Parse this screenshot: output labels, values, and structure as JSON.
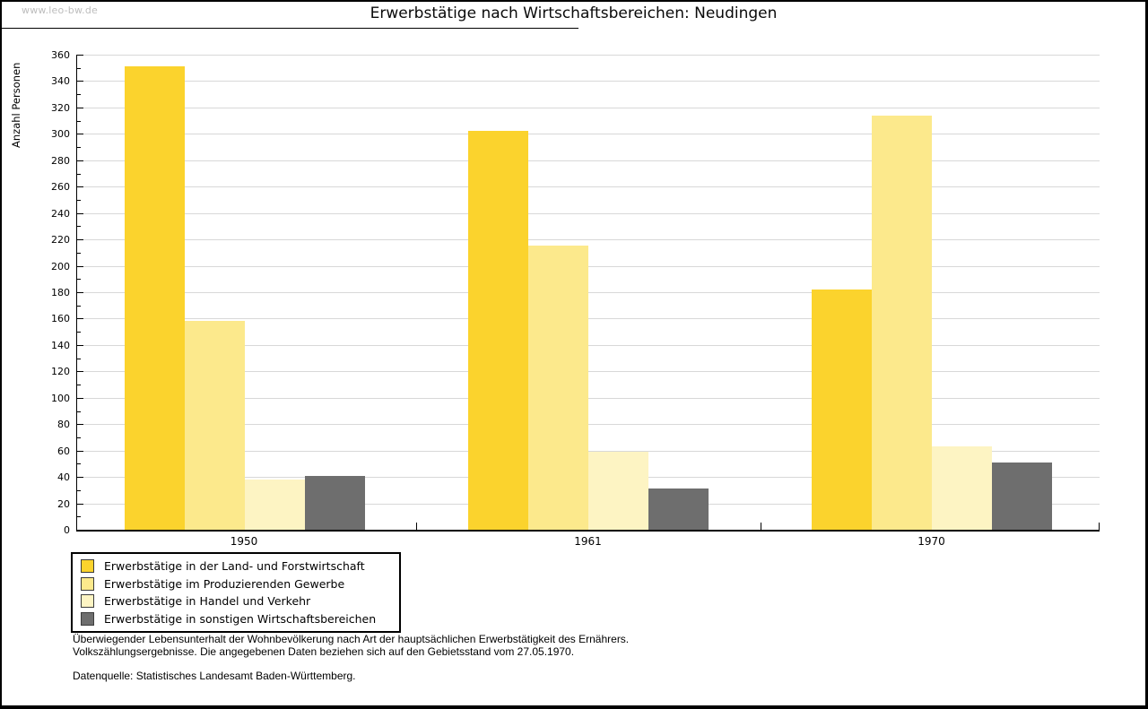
{
  "watermark": "www.leo-bw.de",
  "chart_data": {
    "type": "bar",
    "title": "Erwerbstätige nach Wirtschaftsbereichen: Neudingen",
    "xlabel": "",
    "ylabel": "Anzahl Personen",
    "categories": [
      "1950",
      "1961",
      "1970"
    ],
    "series": [
      {
        "name": "Erwerbstätige in der Land- und Forstwirtschaft",
        "color": "#fbd32d",
        "values": [
          351,
          302,
          182
        ]
      },
      {
        "name": "Erwerbstätige im Produzierenden Gewerbe",
        "color": "#fce98c",
        "values": [
          158,
          215,
          314
        ]
      },
      {
        "name": "Erwerbstätige in Handel und Verkehr",
        "color": "#fdf4c3",
        "values": [
          38,
          59,
          63
        ]
      },
      {
        "name": "Erwerbstätige in sonstigen Wirtschaftsbereichen",
        "color": "#6e6e6e",
        "values": [
          41,
          31,
          51
        ]
      }
    ],
    "ylim": [
      0,
      360
    ],
    "ytick_step": 20,
    "ytick_minor_step": 10,
    "grid": true,
    "gridline_color": "#d8d8d8",
    "legend_position": "bottom-left"
  },
  "footnotes": {
    "line1": "Überwiegender Lebensunterhalt der Wohnbevölkerung nach Art der hauptsächlichen Erwerbstätigkeit des Ernährers.",
    "line2": "Volkszählungsergebnisse. Die angegebenen Daten beziehen sich auf den Gebietsstand vom 27.05.1970.",
    "source": "Datenquelle: Statistisches Landesamt Baden-Württemberg."
  }
}
